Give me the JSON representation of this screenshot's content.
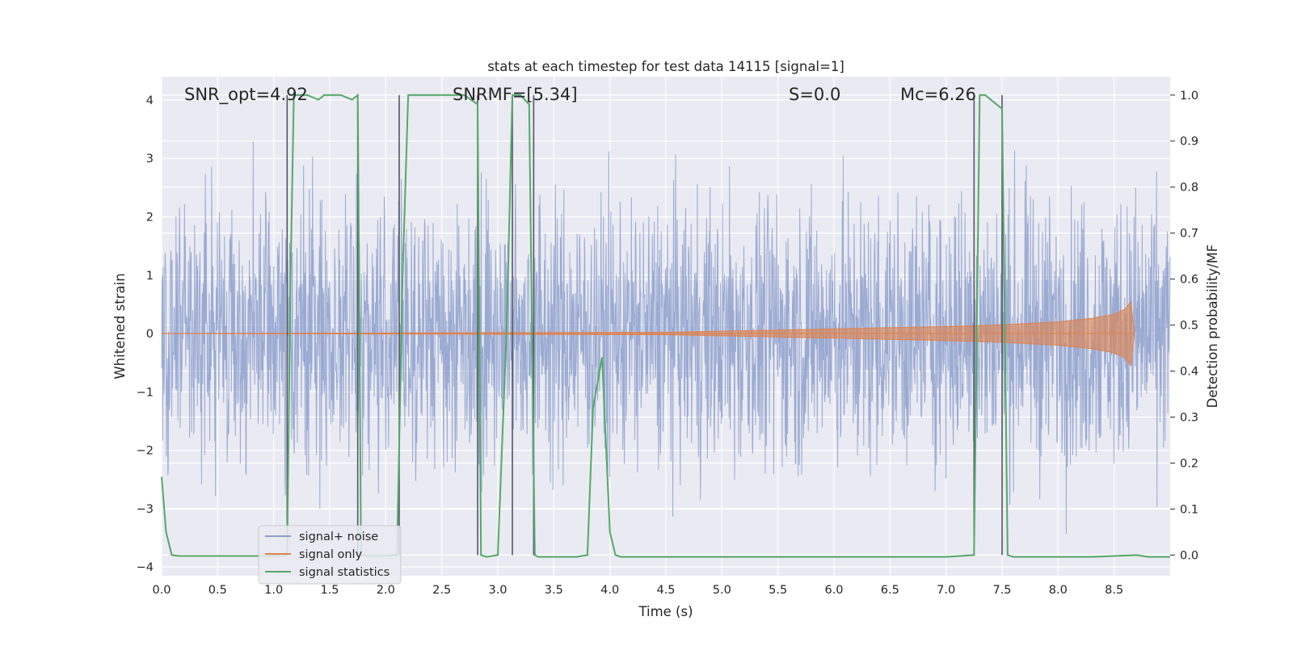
{
  "chart_data": {
    "type": "line",
    "title": "stats at each timestep for test data 14115 [signal=1]",
    "xlabel": "Time (s)",
    "ylabel": "Whitened strain",
    "ylabel_right": "Detection probability/MF",
    "xlim": [
      0.0,
      9.0
    ],
    "ylim": [
      -4.15,
      4.4
    ],
    "ylim_right": [
      -0.045,
      1.04
    ],
    "x_ticks": [
      "0.0",
      "0.5",
      "1.0",
      "1.5",
      "2.0",
      "2.5",
      "3.0",
      "3.5",
      "4.0",
      "4.5",
      "5.0",
      "5.5",
      "6.0",
      "6.5",
      "7.0",
      "7.5",
      "8.0",
      "8.5"
    ],
    "y_ticks": [
      "4",
      "3",
      "2",
      "1",
      "0",
      "−1",
      "−2",
      "−3",
      "−4"
    ],
    "y_right_ticks": [
      "1.0",
      "0.9",
      "0.8",
      "0.7",
      "0.6",
      "0.5",
      "0.4",
      "0.3",
      "0.2",
      "0.1",
      "0.0"
    ],
    "grid": true,
    "legend_position": "lower-left",
    "annotations": [
      {
        "text": "SNR_opt=4.92",
        "x": 0.2,
        "y": 4.1
      },
      {
        "text": "SNRMF=[5.34]",
        "x": 2.6,
        "y": 4.1
      },
      {
        "text": "S=0.0",
        "x": 5.6,
        "y": 4.1
      },
      {
        "text": "Mc=6.26",
        "x": 6.6,
        "y": 4.1
      }
    ],
    "series": [
      {
        "name": "signal+ noise",
        "color": "#8c9fcc",
        "axis": "left",
        "description": "whitened noisy strain, roughly uniform noise spanning about -3.8 to 3.8",
        "envelope_x": [
          0.0,
          9.0
        ],
        "envelope_low": -3.8,
        "envelope_high": 4.0
      },
      {
        "name": "signal only",
        "color": "#dd8452",
        "axis": "left",
        "x": [
          0.0,
          4.5,
          5.0,
          5.5,
          6.0,
          6.5,
          7.0,
          7.5,
          8.0,
          8.3,
          8.5,
          8.6,
          8.65,
          8.68
        ],
        "amplitude": [
          0.0,
          0.02,
          0.04,
          0.06,
          0.08,
          0.1,
          0.12,
          0.15,
          0.2,
          0.26,
          0.33,
          0.42,
          0.55,
          0.0
        ]
      },
      {
        "name": "signal statistics",
        "color": "#55a868",
        "axis": "right",
        "x": [
          0.0,
          0.04,
          0.09,
          0.15,
          0.3,
          0.6,
          0.9,
          1.0,
          1.1,
          1.12,
          1.15,
          1.18,
          1.3,
          1.4,
          1.45,
          1.5,
          1.6,
          1.7,
          1.75,
          1.78,
          1.85,
          2.0,
          2.1,
          2.15,
          2.2,
          2.5,
          2.7,
          2.82,
          2.85,
          2.9,
          3.0,
          3.08,
          3.13,
          3.18,
          3.2,
          3.28,
          3.33,
          3.36,
          3.4,
          3.7,
          3.8,
          3.85,
          3.93,
          4.0,
          4.05,
          4.1,
          5.0,
          6.0,
          7.0,
          7.25,
          7.3,
          7.35,
          7.5,
          7.55,
          7.6,
          8.0,
          8.3,
          8.7,
          8.8,
          9.0
        ],
        "values": [
          0.17,
          0.05,
          0.0,
          -0.002,
          -0.002,
          -0.002,
          -0.002,
          -0.002,
          -0.002,
          0.0,
          0.6,
          1.0,
          1.0,
          0.99,
          1.0,
          1.0,
          1.0,
          0.99,
          1.0,
          0.0,
          -0.002,
          -0.002,
          0.0,
          0.6,
          1.0,
          1.0,
          1.0,
          0.98,
          0.0,
          -0.004,
          0.0,
          0.5,
          1.0,
          1.0,
          1.0,
          0.98,
          0.0,
          -0.004,
          -0.004,
          -0.004,
          0.0,
          0.32,
          0.43,
          0.05,
          0.0,
          -0.004,
          -0.004,
          -0.004,
          -0.004,
          0.0,
          1.0,
          1.0,
          0.97,
          0.0,
          -0.004,
          -0.004,
          -0.004,
          0.0,
          -0.004,
          -0.004
        ]
      }
    ],
    "vertical_lines_x": [
      1.12,
      1.75,
      2.12,
      2.82,
      3.13,
      3.32,
      7.25,
      7.5
    ]
  }
}
